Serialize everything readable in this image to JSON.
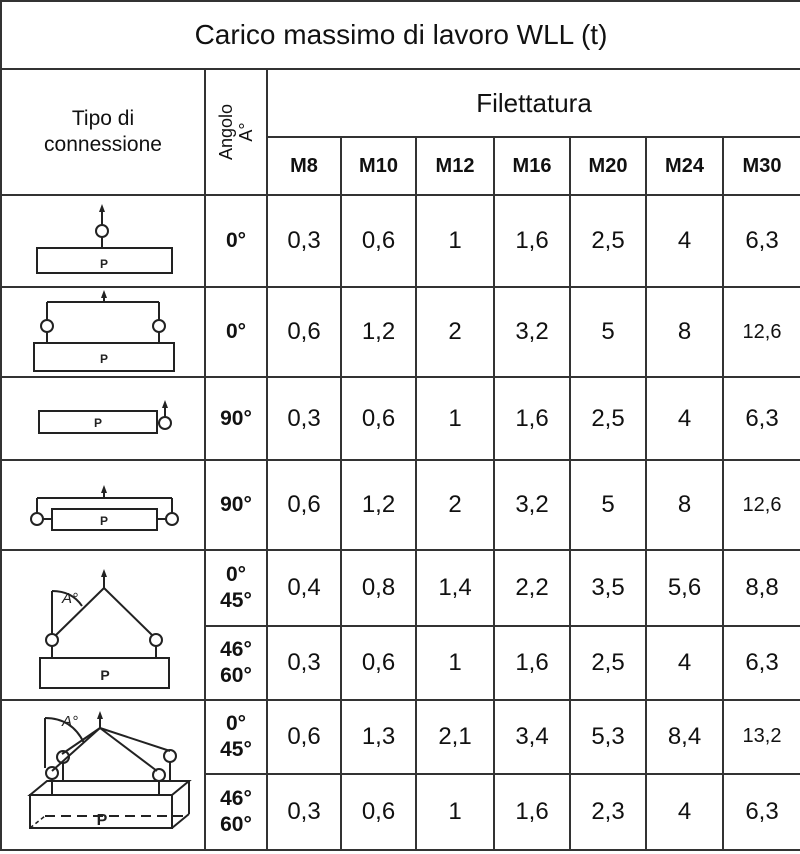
{
  "title": "Carico massimo di lavoro WLL (t)",
  "headers": {
    "connection_type": "Tipo di connessione",
    "angle_line1": "Angolo",
    "angle_line2": "A°",
    "thread": "Filettatura",
    "sizes": [
      "M8",
      "M10",
      "M12",
      "M16",
      "M20",
      "M24",
      "M30"
    ]
  },
  "diagram_labels": {
    "load": "P",
    "angle": "A°"
  },
  "groups": [
    {
      "diagram": "single-eyebolt-top-lift",
      "rows": [
        {
          "angle": [
            "0°"
          ],
          "values": [
            "0,3",
            "0,6",
            "1",
            "1,6",
            "2,5",
            "4",
            "6,3"
          ]
        }
      ]
    },
    {
      "diagram": "two-eyebolts-top-spreader",
      "rows": [
        {
          "angle": [
            "0°"
          ],
          "values": [
            "0,6",
            "1,2",
            "2",
            "3,2",
            "5",
            "8",
            "12,6"
          ]
        }
      ]
    },
    {
      "diagram": "single-eyebolt-side-lift",
      "rows": [
        {
          "angle": [
            "90°"
          ],
          "values": [
            "0,3",
            "0,6",
            "1",
            "1,6",
            "2,5",
            "4",
            "6,3"
          ]
        }
      ]
    },
    {
      "diagram": "two-eyebolts-side-spreader",
      "rows": [
        {
          "angle": [
            "90°"
          ],
          "values": [
            "0,6",
            "1,2",
            "2",
            "3,2",
            "5",
            "8",
            "12,6"
          ]
        }
      ]
    },
    {
      "diagram": "two-leg-sling-angle",
      "rows": [
        {
          "angle": [
            "0°",
            "45°"
          ],
          "values": [
            "0,4",
            "0,8",
            "1,4",
            "2,2",
            "3,5",
            "5,6",
            "8,8"
          ]
        },
        {
          "angle": [
            "46°",
            "60°"
          ],
          "values": [
            "0,3",
            "0,6",
            "1",
            "1,6",
            "2,5",
            "4",
            "6,3"
          ]
        }
      ]
    },
    {
      "diagram": "four-leg-sling-angle",
      "rows": [
        {
          "angle": [
            "0°",
            "45°"
          ],
          "values": [
            "0,6",
            "1,3",
            "2,1",
            "3,4",
            "5,3",
            "8,4",
            "13,2"
          ]
        },
        {
          "angle": [
            "46°",
            "60°"
          ],
          "values": [
            "0,3",
            "0,6",
            "1",
            "1,6",
            "2,3",
            "4",
            "6,3"
          ]
        }
      ]
    }
  ]
}
